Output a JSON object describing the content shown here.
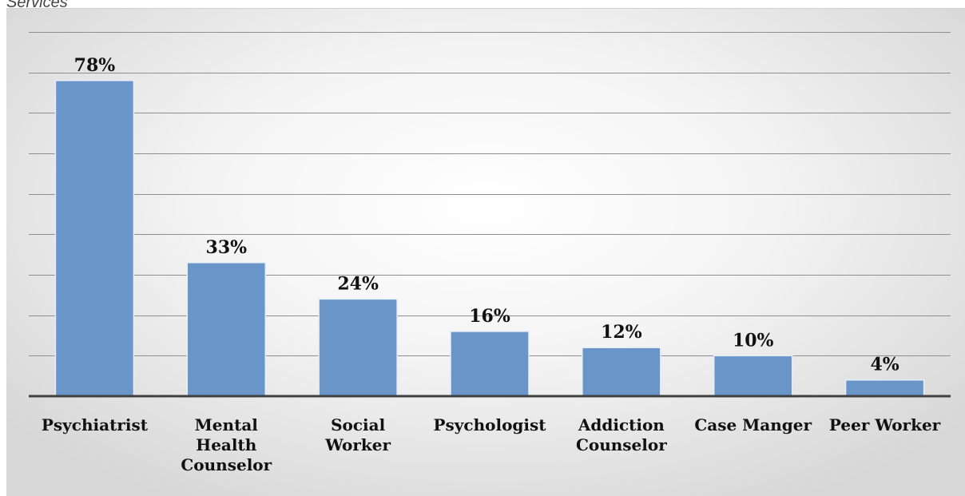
{
  "caption": "Services",
  "chart_data": {
    "type": "bar",
    "categories": [
      "Psychiatrist",
      "Mental Health Counselor",
      "Social Worker",
      "Psychologist",
      "Addiction Counselor",
      "Case Manger",
      "Peer Worker"
    ],
    "category_lines": [
      [
        "Psychiatrist"
      ],
      [
        "Mental",
        "Health",
        "Counselor"
      ],
      [
        "Social",
        "Worker"
      ],
      [
        "Psychologist"
      ],
      [
        "Addiction",
        "Counselor"
      ],
      [
        "Case Manger"
      ],
      [
        "Peer Worker"
      ]
    ],
    "values": [
      78,
      33,
      24,
      16,
      12,
      10,
      4
    ],
    "value_labels": [
      "78%",
      "33%",
      "24%",
      "16%",
      "12%",
      "10%",
      "4%"
    ],
    "ylim": [
      0,
      90
    ],
    "grid": true,
    "colors": {
      "bar": "#6a95c9"
    }
  }
}
